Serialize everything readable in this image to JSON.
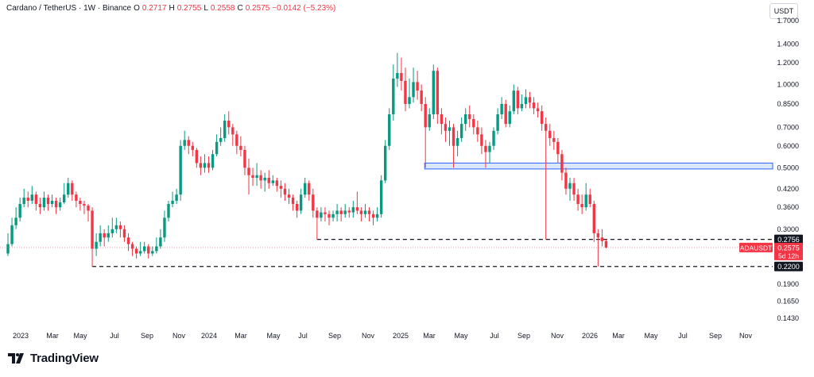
{
  "header": {
    "symbol": "Cardano / TetherUS · 1W · Binance",
    "o_label": "O",
    "o_val": "0.2717",
    "h_label": "H",
    "h_val": "0.2755",
    "l_label": "L",
    "l_val": "0.2558",
    "c_label": "C",
    "c_val": "0.2575",
    "change": "−0.0142 (−5.23%)"
  },
  "currency_button": "USDT",
  "brand": "TradingView",
  "colors": {
    "up": "#089981",
    "down": "#f23645",
    "zone_fill": "#dbe8fb",
    "zone_stroke": "#2962ff",
    "axis_text": "#131722"
  },
  "chart_data": {
    "type": "candlestick",
    "symbol": "ADAUSDT",
    "interval": "1W",
    "y_scale": "log",
    "y_ticks": [
      "1.7000",
      "1.4000",
      "1.2000",
      "1.0000",
      "0.8500",
      "0.7000",
      "0.6000",
      "0.5000",
      "0.4200",
      "0.3600",
      "0.3000",
      "0.1900",
      "0.1650",
      "0.1430"
    ],
    "x_ticks": [
      "2023",
      "Mar",
      "May",
      "Jul",
      "Sep",
      "Nov",
      "2024",
      "Mar",
      "May",
      "Jul",
      "Sep",
      "Nov",
      "2025",
      "Mar",
      "May",
      "Jul",
      "Sep",
      "Nov",
      "2026",
      "Mar",
      "May",
      "Jul",
      "Sep",
      "Nov"
    ],
    "price_labels": [
      {
        "text": "0.2756",
        "style": "dark"
      },
      {
        "text": "ADAUSDT",
        "style": "red"
      },
      {
        "text": "0.2575",
        "style": "red"
      },
      {
        "text": "5d 12h",
        "style": "red"
      },
      {
        "text": "0.2200",
        "style": "dark"
      }
    ],
    "levels": [
      {
        "price": 0.2756,
        "from_week": 77,
        "style": "dashed"
      },
      {
        "price": 0.22,
        "from_week": 21,
        "style": "dashed"
      }
    ],
    "zone": {
      "from_week": 104,
      "low": 0.495,
      "high": 0.52
    },
    "current_price": 0.2575,
    "candles": [
      [
        0.245,
        0.265,
        0.29,
        0.24
      ],
      [
        0.265,
        0.31,
        0.33,
        0.26
      ],
      [
        0.31,
        0.33,
        0.36,
        0.3
      ],
      [
        0.33,
        0.37,
        0.39,
        0.32
      ],
      [
        0.37,
        0.39,
        0.42,
        0.36
      ],
      [
        0.39,
        0.38,
        0.41,
        0.36
      ],
      [
        0.38,
        0.4,
        0.43,
        0.37
      ],
      [
        0.4,
        0.37,
        0.41,
        0.35
      ],
      [
        0.37,
        0.36,
        0.39,
        0.34
      ],
      [
        0.36,
        0.39,
        0.41,
        0.35
      ],
      [
        0.39,
        0.37,
        0.4,
        0.35
      ],
      [
        0.37,
        0.38,
        0.4,
        0.36
      ],
      [
        0.38,
        0.36,
        0.39,
        0.34
      ],
      [
        0.36,
        0.375,
        0.39,
        0.35
      ],
      [
        0.375,
        0.4,
        0.44,
        0.37
      ],
      [
        0.4,
        0.44,
        0.46,
        0.39
      ],
      [
        0.44,
        0.4,
        0.45,
        0.38
      ],
      [
        0.4,
        0.38,
        0.41,
        0.36
      ],
      [
        0.38,
        0.37,
        0.39,
        0.35
      ],
      [
        0.37,
        0.365,
        0.38,
        0.34
      ],
      [
        0.365,
        0.35,
        0.37,
        0.32
      ],
      [
        0.35,
        0.255,
        0.36,
        0.22
      ],
      [
        0.255,
        0.27,
        0.29,
        0.24
      ],
      [
        0.27,
        0.29,
        0.31,
        0.26
      ],
      [
        0.29,
        0.28,
        0.3,
        0.26
      ],
      [
        0.28,
        0.29,
        0.31,
        0.27
      ],
      [
        0.29,
        0.3,
        0.33,
        0.28
      ],
      [
        0.3,
        0.31,
        0.33,
        0.29
      ],
      [
        0.31,
        0.3,
        0.32,
        0.28
      ],
      [
        0.3,
        0.28,
        0.31,
        0.27
      ],
      [
        0.28,
        0.265,
        0.29,
        0.25
      ],
      [
        0.265,
        0.255,
        0.27,
        0.24
      ],
      [
        0.255,
        0.245,
        0.26,
        0.235
      ],
      [
        0.245,
        0.25,
        0.27,
        0.24
      ],
      [
        0.25,
        0.26,
        0.27,
        0.245
      ],
      [
        0.26,
        0.245,
        0.265,
        0.235
      ],
      [
        0.245,
        0.25,
        0.26,
        0.24
      ],
      [
        0.25,
        0.26,
        0.28,
        0.245
      ],
      [
        0.26,
        0.28,
        0.3,
        0.255
      ],
      [
        0.28,
        0.33,
        0.35,
        0.27
      ],
      [
        0.33,
        0.37,
        0.38,
        0.32
      ],
      [
        0.37,
        0.38,
        0.41,
        0.36
      ],
      [
        0.38,
        0.4,
        0.42,
        0.37
      ],
      [
        0.4,
        0.6,
        0.63,
        0.38
      ],
      [
        0.6,
        0.63,
        0.68,
        0.58
      ],
      [
        0.63,
        0.6,
        0.65,
        0.56
      ],
      [
        0.6,
        0.58,
        0.62,
        0.55
      ],
      [
        0.58,
        0.52,
        0.59,
        0.5
      ],
      [
        0.52,
        0.5,
        0.55,
        0.47
      ],
      [
        0.5,
        0.52,
        0.56,
        0.48
      ],
      [
        0.52,
        0.5,
        0.55,
        0.48
      ],
      [
        0.5,
        0.56,
        0.58,
        0.49
      ],
      [
        0.56,
        0.62,
        0.66,
        0.55
      ],
      [
        0.62,
        0.64,
        0.7,
        0.6
      ],
      [
        0.64,
        0.74,
        0.78,
        0.62
      ],
      [
        0.74,
        0.7,
        0.8,
        0.66
      ],
      [
        0.7,
        0.66,
        0.72,
        0.6
      ],
      [
        0.66,
        0.6,
        0.68,
        0.56
      ],
      [
        0.6,
        0.58,
        0.65,
        0.55
      ],
      [
        0.58,
        0.5,
        0.6,
        0.47
      ],
      [
        0.5,
        0.47,
        0.54,
        0.4
      ],
      [
        0.47,
        0.46,
        0.5,
        0.43
      ],
      [
        0.46,
        0.47,
        0.52,
        0.43
      ],
      [
        0.47,
        0.45,
        0.49,
        0.42
      ],
      [
        0.45,
        0.46,
        0.48,
        0.41
      ],
      [
        0.46,
        0.44,
        0.49,
        0.42
      ],
      [
        0.44,
        0.45,
        0.47,
        0.43
      ],
      [
        0.45,
        0.43,
        0.46,
        0.41
      ],
      [
        0.43,
        0.42,
        0.45,
        0.39
      ],
      [
        0.42,
        0.4,
        0.44,
        0.38
      ],
      [
        0.4,
        0.39,
        0.42,
        0.37
      ],
      [
        0.39,
        0.37,
        0.4,
        0.35
      ],
      [
        0.37,
        0.35,
        0.38,
        0.33
      ],
      [
        0.35,
        0.4,
        0.42,
        0.34
      ],
      [
        0.4,
        0.44,
        0.46,
        0.39
      ],
      [
        0.44,
        0.4,
        0.45,
        0.38
      ],
      [
        0.4,
        0.35,
        0.42,
        0.33
      ],
      [
        0.35,
        0.33,
        0.36,
        0.275
      ],
      [
        0.33,
        0.345,
        0.36,
        0.32
      ],
      [
        0.345,
        0.34,
        0.36,
        0.32
      ],
      [
        0.34,
        0.33,
        0.35,
        0.31
      ],
      [
        0.33,
        0.34,
        0.35,
        0.32
      ],
      [
        0.34,
        0.35,
        0.37,
        0.32
      ],
      [
        0.35,
        0.34,
        0.36,
        0.32
      ],
      [
        0.34,
        0.35,
        0.37,
        0.33
      ],
      [
        0.35,
        0.345,
        0.36,
        0.33
      ],
      [
        0.345,
        0.36,
        0.38,
        0.33
      ],
      [
        0.36,
        0.35,
        0.41,
        0.34
      ],
      [
        0.35,
        0.34,
        0.36,
        0.32
      ],
      [
        0.34,
        0.35,
        0.37,
        0.33
      ],
      [
        0.35,
        0.34,
        0.36,
        0.32
      ],
      [
        0.34,
        0.33,
        0.35,
        0.31
      ],
      [
        0.33,
        0.34,
        0.36,
        0.32
      ],
      [
        0.34,
        0.45,
        0.47,
        0.33
      ],
      [
        0.45,
        0.6,
        0.63,
        0.44
      ],
      [
        0.6,
        0.78,
        0.82,
        0.58
      ],
      [
        0.78,
        1.05,
        1.18,
        0.74
      ],
      [
        1.05,
        1.1,
        1.3,
        0.98
      ],
      [
        1.1,
        1.03,
        1.25,
        0.95
      ],
      [
        1.03,
        0.85,
        1.15,
        0.8
      ],
      [
        0.85,
        0.9,
        1.05,
        0.82
      ],
      [
        0.9,
        1.02,
        1.15,
        0.86
      ],
      [
        1.02,
        0.95,
        1.12,
        0.88
      ],
      [
        0.95,
        0.85,
        1.0,
        0.8
      ],
      [
        0.85,
        0.7,
        0.9,
        0.5
      ],
      [
        0.7,
        0.78,
        0.82,
        0.68
      ],
      [
        0.78,
        1.12,
        1.18,
        0.75
      ],
      [
        1.12,
        0.78,
        1.15,
        0.72
      ],
      [
        0.78,
        0.72,
        0.82,
        0.66
      ],
      [
        0.72,
        0.68,
        0.76,
        0.62
      ],
      [
        0.68,
        0.7,
        0.74,
        0.6
      ],
      [
        0.7,
        0.6,
        0.72,
        0.5
      ],
      [
        0.6,
        0.64,
        0.68,
        0.55
      ],
      [
        0.64,
        0.72,
        0.76,
        0.62
      ],
      [
        0.72,
        0.78,
        0.82,
        0.68
      ],
      [
        0.78,
        0.75,
        0.84,
        0.7
      ],
      [
        0.75,
        0.7,
        0.78,
        0.66
      ],
      [
        0.7,
        0.66,
        0.74,
        0.62
      ],
      [
        0.66,
        0.6,
        0.7,
        0.56
      ],
      [
        0.6,
        0.57,
        0.63,
        0.5
      ],
      [
        0.57,
        0.6,
        0.62,
        0.52
      ],
      [
        0.6,
        0.68,
        0.7,
        0.58
      ],
      [
        0.68,
        0.78,
        0.82,
        0.66
      ],
      [
        0.78,
        0.85,
        0.9,
        0.75
      ],
      [
        0.85,
        0.72,
        0.88,
        0.7
      ],
      [
        0.72,
        0.8,
        0.84,
        0.7
      ],
      [
        0.8,
        0.95,
        1.0,
        0.78
      ],
      [
        0.95,
        0.82,
        0.98,
        0.78
      ],
      [
        0.82,
        0.85,
        0.92,
        0.8
      ],
      [
        0.85,
        0.9,
        0.96,
        0.82
      ],
      [
        0.9,
        0.86,
        0.94,
        0.82
      ],
      [
        0.86,
        0.82,
        0.9,
        0.78
      ],
      [
        0.82,
        0.8,
        0.86,
        0.76
      ],
      [
        0.8,
        0.72,
        0.84,
        0.68
      ],
      [
        0.72,
        0.68,
        0.76,
        0.275
      ],
      [
        0.68,
        0.64,
        0.72,
        0.6
      ],
      [
        0.64,
        0.62,
        0.68,
        0.58
      ],
      [
        0.62,
        0.56,
        0.64,
        0.52
      ],
      [
        0.56,
        0.48,
        0.58,
        0.45
      ],
      [
        0.48,
        0.42,
        0.5,
        0.4
      ],
      [
        0.42,
        0.44,
        0.46,
        0.38
      ],
      [
        0.44,
        0.4,
        0.46,
        0.38
      ],
      [
        0.4,
        0.37,
        0.42,
        0.35
      ],
      [
        0.37,
        0.36,
        0.4,
        0.34
      ],
      [
        0.36,
        0.4,
        0.44,
        0.35
      ],
      [
        0.4,
        0.37,
        0.42,
        0.36
      ],
      [
        0.37,
        0.29,
        0.38,
        0.27
      ],
      [
        0.29,
        0.28,
        0.3,
        0.22
      ],
      [
        0.28,
        0.2717,
        0.3,
        0.26
      ],
      [
        0.2717,
        0.2575,
        0.2755,
        0.2558
      ]
    ]
  }
}
